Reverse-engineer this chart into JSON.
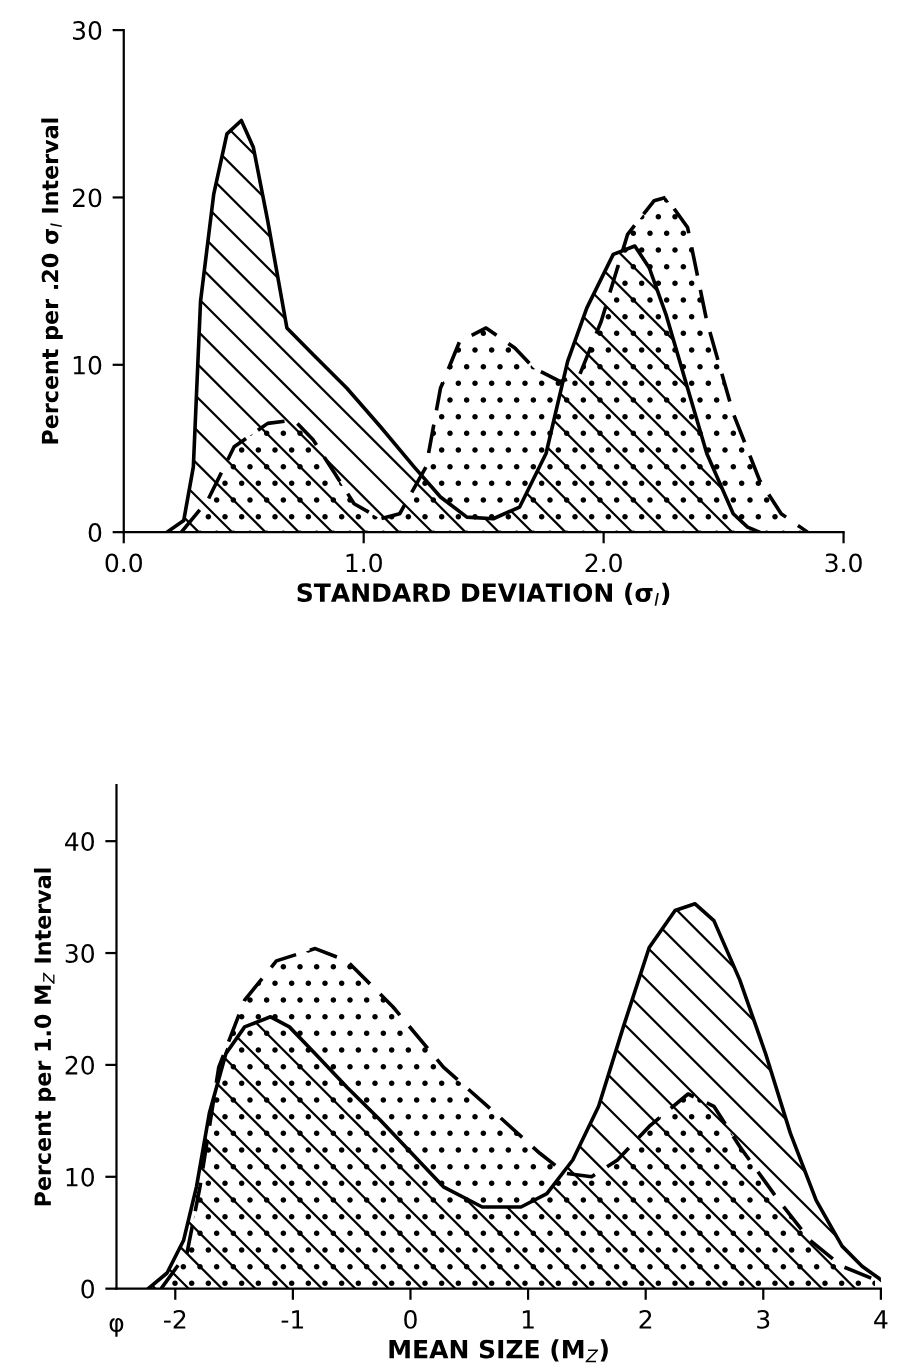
{
  "chart_data": [
    {
      "type": "area",
      "xlabel": "STANDARD DEVIATION (σ$_{I}$)",
      "ylabel": "Percent per .20 σ$_{I}$ Interval",
      "xlim": [
        0,
        3
      ],
      "ylim": [
        0,
        30
      ],
      "xticks": [
        {
          "value": 0,
          "label": "0.0"
        },
        {
          "value": 1,
          "label": "1.0"
        },
        {
          "value": 2,
          "label": "2.0"
        },
        {
          "value": 3,
          "label": "3.0"
        }
      ],
      "yticks": [
        0,
        10,
        20,
        30
      ],
      "grid": false,
      "legend": false,
      "series": [
        {
          "color": "#000000",
          "line_style": "solid",
          "x": [
            0.18,
            0.25,
            0.29,
            0.32,
            0.375,
            0.43,
            0.49,
            0.54,
            0.6,
            0.68,
            0.79,
            0.93,
            1.07,
            1.21,
            1.32,
            1.43,
            1.54,
            1.65,
            1.76,
            1.85,
            1.93,
            2.04,
            2.13,
            2.19,
            2.26,
            2.35,
            2.43,
            2.54,
            2.6,
            2.65
          ],
          "values": [
            0,
            0.7,
            3.9,
            13.8,
            20.2,
            23.8,
            24.6,
            23,
            18.6,
            12.2,
            10.6,
            8.6,
            6.3,
            3.9,
            2.1,
            0.9,
            0.8,
            1.5,
            4.7,
            10.2,
            13.4,
            16.6,
            17.1,
            15.8,
            13,
            8.6,
            4.7,
            1.1,
            0.3,
            0
          ]
        },
        {
          "color": "#000000",
          "line_style": "dashed",
          "x": [
            0.24,
            0.35,
            0.46,
            0.6,
            0.71,
            0.79,
            0.88,
            0.96,
            1.07,
            1.15,
            1.26,
            1.32,
            1.4,
            1.51,
            1.63,
            1.71,
            1.82,
            1.9,
            1.99,
            2.1,
            2.21,
            2.26,
            2.35,
            2.43,
            2.54,
            2.65,
            2.74,
            2.82,
            2.85
          ],
          "values": [
            0,
            1.9,
            5.1,
            6.5,
            6.7,
            5.5,
            3.5,
            1.7,
            0.8,
            1.1,
            3.9,
            8.6,
            11.4,
            12.2,
            11,
            9.8,
            9,
            9.4,
            12.6,
            17.8,
            19.8,
            20,
            18.2,
            12.6,
            7.1,
            3.1,
            1.1,
            0.3,
            0
          ]
        }
      ]
    },
    {
      "type": "area",
      "xlabel": "MEAN SIZE (M$_{Z}$)",
      "ylabel": "Percent per 1.0 M$_{Z}$ Interval",
      "annotations": [
        "φ"
      ],
      "xlim": [
        -2.5,
        4
      ],
      "ylim": [
        0,
        45
      ],
      "xticks": [
        -2,
        -1,
        0,
        1,
        2,
        3,
        4
      ],
      "yticks": [
        0,
        10,
        20,
        30,
        40
      ],
      "grid": false,
      "legend": false,
      "series": [
        {
          "color": "#000000",
          "line_style": "solid",
          "x": [
            -2.23,
            -2.07,
            -1.93,
            -1.82,
            -1.71,
            -1.57,
            -1.41,
            -1.19,
            -1.03,
            -0.81,
            -0.54,
            -0.26,
            0.01,
            0.28,
            0.61,
            0.94,
            1.16,
            1.38,
            1.6,
            1.81,
            2.03,
            2.25,
            2.42,
            2.58,
            2.8,
            3.02,
            3.23,
            3.45,
            3.67,
            3.84,
            4.0
          ],
          "values": [
            0,
            1.4,
            4.3,
            9.1,
            15.7,
            21,
            23.4,
            24.3,
            23.4,
            21,
            18,
            15.1,
            12.1,
            9.1,
            7.3,
            7.3,
            8.5,
            11.5,
            16.3,
            23.4,
            30.5,
            33.8,
            34.4,
            32.9,
            27.6,
            21,
            13.9,
            7.9,
            3.8,
            2,
            0.8
          ]
        },
        {
          "color": "#000000",
          "line_style": "dashed",
          "x": [
            -2.12,
            -1.9,
            -1.79,
            -1.63,
            -1.41,
            -1.14,
            -0.81,
            -0.54,
            -0.15,
            0.28,
            0.72,
            1.1,
            1.32,
            1.54,
            1.76,
            2.03,
            2.36,
            2.58,
            2.8,
            3.13,
            3.4,
            3.67,
            3.95
          ],
          "values": [
            0,
            3.2,
            9.1,
            19.8,
            25.8,
            29.3,
            30.4,
            29.3,
            25.2,
            19.8,
            15.7,
            12.1,
            10.3,
            10,
            11.5,
            14.5,
            17.4,
            16.3,
            12.7,
            7.9,
            4.3,
            2,
            0.8
          ]
        }
      ]
    }
  ]
}
